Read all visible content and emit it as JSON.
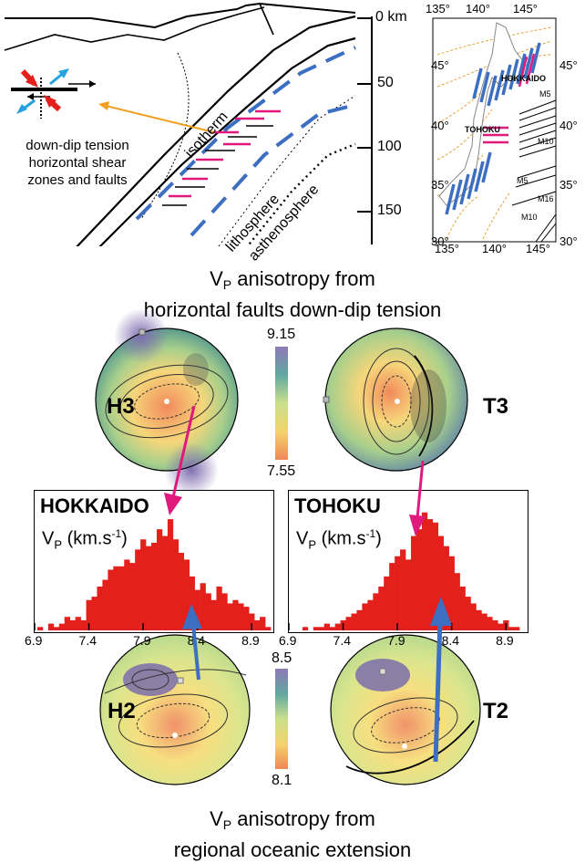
{
  "cross_section": {
    "depth_unit": "km",
    "depth_labels": [
      "0 km",
      "50",
      "100",
      "150"
    ],
    "isotherm": "isotherm",
    "lithosphere": "lithosphere",
    "asthenosphere": "asthenosphere",
    "inset_caption_lines": [
      "down-dip tension",
      "horizontal shear",
      "zones and faults"
    ]
  },
  "map": {
    "top_lon": [
      "135°",
      "140°",
      "145°"
    ],
    "bottom_lon": [
      "135°",
      "140°",
      "145°"
    ],
    "lat_left": [
      "45°",
      "40°",
      "35°",
      "30°"
    ],
    "lat_right": [
      "45°",
      "40°",
      "35°",
      "30°"
    ],
    "regions": [
      "HOKKAIDO",
      "TOHOKU"
    ],
    "magnitudes": [
      "M5",
      "M10",
      "M5",
      "M16",
      "M10"
    ]
  },
  "top_title": {
    "line1_prefix": "V",
    "line1_sub": "P",
    "line1_suffix": " anisotropy from",
    "line2": "horizontal faults down-dip tension"
  },
  "bottom_title": {
    "line1_prefix": "V",
    "line1_sub": "P",
    "line1_suffix": " anisotropy from",
    "line2": "regional oceanic extension"
  },
  "stereonets": {
    "H3": "H3",
    "T3": "T3",
    "H2": "H2",
    "T2": "T2",
    "scale_top": {
      "max": "9.15",
      "min": "7.55"
    },
    "scale_bottom": {
      "max": "8.5",
      "min": "8.1"
    }
  },
  "histograms": {
    "hokkaido": {
      "title": "HOKKAIDO",
      "unit_prefix": "V",
      "unit_sub": "P",
      "unit_suffix": " (km.s",
      "unit_sup": "-1",
      "unit_close": ")"
    },
    "tohoku": {
      "title": "TOHOKU",
      "unit_prefix": "V",
      "unit_sub": "P",
      "unit_suffix": " (km.s",
      "unit_sup": "-1",
      "unit_close": ")"
    },
    "x_ticks": [
      "6.9",
      "7.4",
      "7.9",
      "8.4",
      "8.9"
    ],
    "colors": {
      "bar": "#e3201b",
      "pink": "#e0197d",
      "blue": "#3c6ec2"
    }
  },
  "chart_data": [
    {
      "type": "bar",
      "title": "HOKKAIDO",
      "xlabel": "",
      "ylabel": "",
      "xlim": [
        6.9,
        9.1
      ],
      "x": [
        6.95,
        7.0,
        7.05,
        7.1,
        7.15,
        7.2,
        7.25,
        7.3,
        7.35,
        7.4,
        7.45,
        7.5,
        7.55,
        7.6,
        7.65,
        7.7,
        7.75,
        7.8,
        7.85,
        7.9,
        7.95,
        8.0,
        8.05,
        8.1,
        8.15,
        8.2,
        8.25,
        8.3,
        8.35,
        8.4,
        8.45,
        8.5,
        8.55,
        8.6,
        8.65,
        8.7,
        8.75,
        8.8,
        8.85,
        8.9,
        8.95,
        9.0,
        9.05
      ],
      "values": [
        1,
        0,
        2,
        1,
        2,
        4,
        3,
        4,
        3,
        9,
        10,
        13,
        15,
        18,
        19,
        19,
        21,
        20,
        24,
        27,
        25,
        26,
        30,
        28,
        33,
        27,
        23,
        21,
        16,
        12,
        14,
        11,
        9,
        13,
        11,
        8,
        9,
        8,
        7,
        5,
        3,
        4,
        1
      ]
    },
    {
      "type": "bar",
      "title": "TOHOKU",
      "xlabel": "",
      "ylabel": "",
      "xlim": [
        6.9,
        9.1
      ],
      "x": [
        7.05,
        7.1,
        7.15,
        7.2,
        7.25,
        7.3,
        7.35,
        7.4,
        7.45,
        7.5,
        7.55,
        7.6,
        7.65,
        7.7,
        7.75,
        7.8,
        7.85,
        7.9,
        7.95,
        8.0,
        8.05,
        8.1,
        8.15,
        8.2,
        8.25,
        8.3,
        8.35,
        8.4,
        8.45,
        8.5,
        8.55,
        8.6,
        8.65,
        8.7,
        8.75,
        8.8,
        8.85,
        8.9,
        8.95,
        9.0
      ],
      "values": [
        1,
        0,
        1,
        1,
        2,
        1,
        2,
        3,
        4,
        5,
        6,
        8,
        9,
        11,
        13,
        16,
        20,
        22,
        24,
        21,
        28,
        30,
        35,
        33,
        32,
        28,
        25,
        22,
        17,
        13,
        10,
        8,
        6,
        5,
        4,
        3,
        2,
        3,
        1,
        1
      ]
    }
  ]
}
